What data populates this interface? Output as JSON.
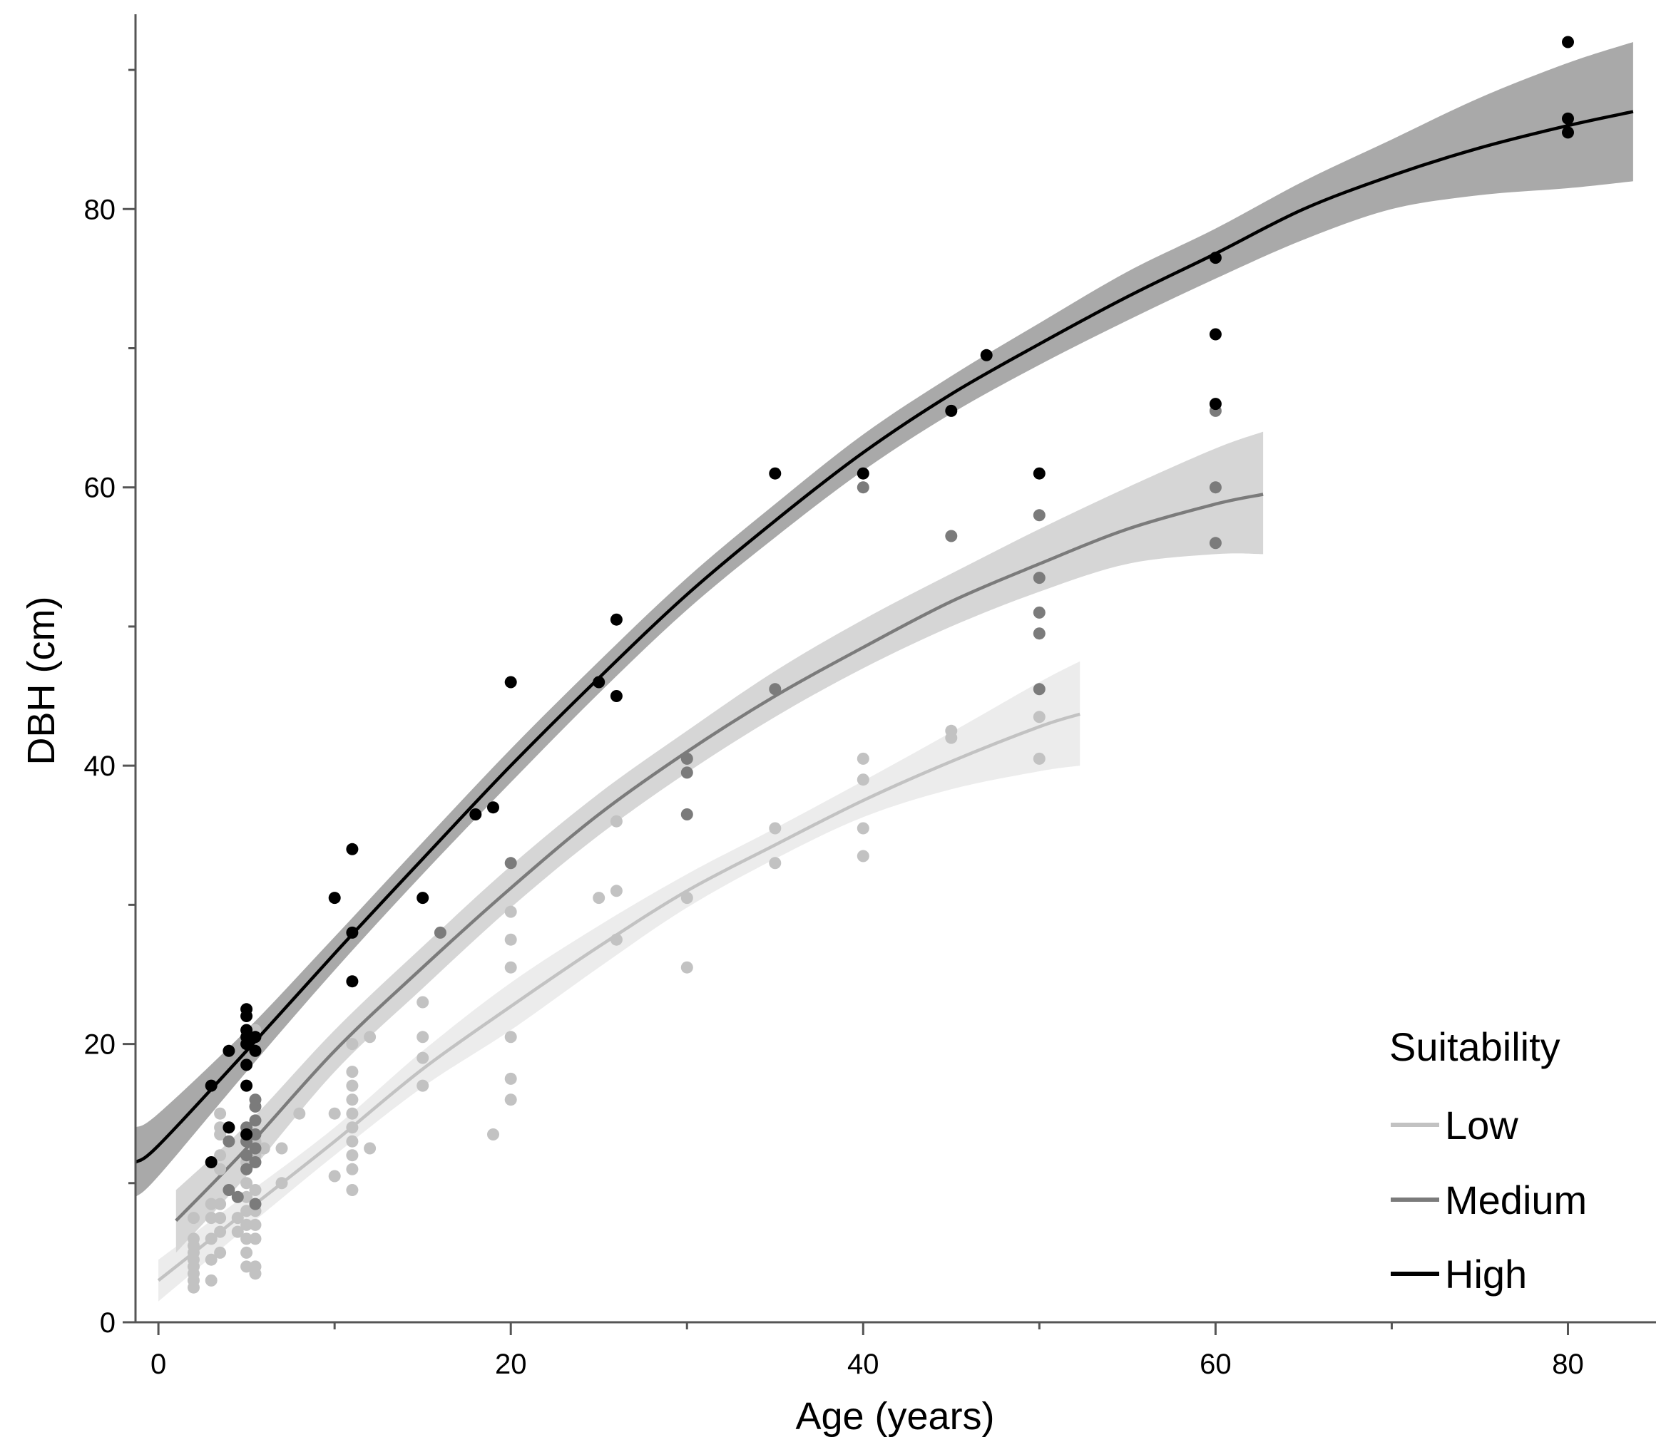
{
  "chart_data": {
    "type": "scatter",
    "title": "",
    "xlabel": "Age (years)",
    "ylabel": "DBH (cm)",
    "xlim": [
      -1.3,
      85
    ],
    "ylim": [
      0,
      94
    ],
    "xticks": [
      0,
      20,
      40,
      60,
      80
    ],
    "xticks_minor": [
      10,
      30,
      50,
      70
    ],
    "yticks": [
      0,
      20,
      40,
      60,
      80
    ],
    "yticks_minor": [
      10,
      30,
      50,
      70,
      90
    ],
    "grid": false,
    "legend": {
      "title": "Suitability",
      "position": "bottom-right"
    },
    "series": [
      {
        "name": "Low",
        "color": "#c2c2c2",
        "band_color": "#ececec",
        "fit": {
          "x": [
            0,
            5,
            10,
            15,
            20,
            25,
            30,
            35,
            40,
            45,
            50,
            52.3
          ],
          "y": [
            3.0,
            8.0,
            13.0,
            18.2,
            22.7,
            27.0,
            31.0,
            34.3,
            37.5,
            40.3,
            42.8,
            43.7
          ],
          "lower": [
            1.5,
            6.8,
            12.0,
            16.9,
            21.0,
            25.5,
            29.8,
            33.3,
            36.3,
            38.3,
            39.6,
            40.0
          ],
          "upper": [
            4.5,
            9.2,
            14.0,
            19.5,
            24.4,
            28.5,
            32.2,
            35.5,
            38.9,
            42.4,
            46.0,
            47.5
          ]
        },
        "points": [
          [
            2,
            2.5
          ],
          [
            2,
            3.0
          ],
          [
            2,
            3.5
          ],
          [
            2,
            4.0
          ],
          [
            2,
            4.5
          ],
          [
            2,
            5.0
          ],
          [
            2,
            5.5
          ],
          [
            2,
            6.0
          ],
          [
            2,
            7.5
          ],
          [
            3,
            3.0
          ],
          [
            3,
            4.5
          ],
          [
            3,
            6.0
          ],
          [
            3,
            7.5
          ],
          [
            3,
            8.5
          ],
          [
            3.5,
            5.0
          ],
          [
            3.5,
            6.5
          ],
          [
            3.5,
            7.5
          ],
          [
            3.5,
            8.5
          ],
          [
            3.5,
            11.0
          ],
          [
            3.5,
            12.0
          ],
          [
            3.5,
            13.5
          ],
          [
            3.5,
            14.0
          ],
          [
            3.5,
            15.0
          ],
          [
            4.5,
            6.5
          ],
          [
            4.5,
            7.5
          ],
          [
            5,
            4.0
          ],
          [
            5,
            5.0
          ],
          [
            5,
            6.0
          ],
          [
            5,
            7.0
          ],
          [
            5,
            8.0
          ],
          [
            5,
            9.0
          ],
          [
            5,
            10.0
          ],
          [
            5,
            11.5
          ],
          [
            5.5,
            3.5
          ],
          [
            5.5,
            4.0
          ],
          [
            5.5,
            6.0
          ],
          [
            5.5,
            7.0
          ],
          [
            5.5,
            8.0
          ],
          [
            5.5,
            9.5
          ],
          [
            5.5,
            12.0
          ],
          [
            5.5,
            13.0
          ],
          [
            5.5,
            21.0
          ],
          [
            6,
            12.5
          ],
          [
            7,
            10.0
          ],
          [
            7,
            12.5
          ],
          [
            8,
            15.0
          ],
          [
            10,
            10.5
          ],
          [
            10,
            15.0
          ],
          [
            11,
            9.5
          ],
          [
            11,
            11.0
          ],
          [
            11,
            12.0
          ],
          [
            11,
            13.0
          ],
          [
            11,
            14.0
          ],
          [
            11,
            15.0
          ],
          [
            11,
            16.0
          ],
          [
            11,
            17.0
          ],
          [
            11,
            18.0
          ],
          [
            11,
            20.0
          ],
          [
            12,
            12.5
          ],
          [
            12,
            20.5
          ],
          [
            15,
            17.0
          ],
          [
            15,
            19.0
          ],
          [
            15,
            20.5
          ],
          [
            15,
            23.0
          ],
          [
            19,
            13.5
          ],
          [
            20,
            16.0
          ],
          [
            20,
            17.5
          ],
          [
            20,
            20.5
          ],
          [
            20,
            25.5
          ],
          [
            20,
            27.5
          ],
          [
            20,
            29.5
          ],
          [
            25,
            30.5
          ],
          [
            26,
            27.5
          ],
          [
            26,
            31.0
          ],
          [
            26,
            36.0
          ],
          [
            30,
            25.5
          ],
          [
            30,
            30.5
          ],
          [
            35,
            33.0
          ],
          [
            35,
            35.5
          ],
          [
            40,
            33.5
          ],
          [
            40,
            35.5
          ],
          [
            40,
            39.0
          ],
          [
            40,
            40.5
          ],
          [
            45,
            42.0
          ],
          [
            45,
            42.5
          ],
          [
            50,
            40.5
          ],
          [
            50,
            43.5
          ]
        ]
      },
      {
        "name": "Medium",
        "color": "#7b7b7b",
        "band_color": "#d6d6d6",
        "fit": {
          "x": [
            1,
            5,
            10,
            15,
            20,
            25,
            30,
            35,
            40,
            45,
            50,
            55,
            60,
            62.7
          ],
          "y": [
            7.3,
            12.5,
            19.5,
            25.5,
            31.2,
            36.5,
            41.0,
            45.0,
            48.5,
            51.8,
            54.5,
            57.0,
            58.8,
            59.5
          ],
          "lower": [
            5.0,
            10.5,
            18.0,
            24.0,
            29.8,
            35.0,
            39.5,
            43.5,
            47.0,
            50.0,
            52.5,
            54.5,
            55.2,
            55.2
          ],
          "upper": [
            9.5,
            14.2,
            21.0,
            27.0,
            32.8,
            38.0,
            42.5,
            46.8,
            50.5,
            53.8,
            57.0,
            60.0,
            62.8,
            64.0
          ]
        },
        "points": [
          [
            4,
            9.5
          ],
          [
            4,
            13.0
          ],
          [
            4,
            14.0
          ],
          [
            4.5,
            9.0
          ],
          [
            5,
            11.0
          ],
          [
            5,
            12.0
          ],
          [
            5,
            13.0
          ],
          [
            5,
            14.0
          ],
          [
            5.5,
            8.5
          ],
          [
            5.5,
            11.5
          ],
          [
            5.5,
            12.5
          ],
          [
            5.5,
            13.5
          ],
          [
            5.5,
            14.5
          ],
          [
            5.5,
            15.5
          ],
          [
            5.5,
            16.0
          ],
          [
            16,
            28.0
          ],
          [
            20,
            33.0
          ],
          [
            30,
            36.5
          ],
          [
            30,
            39.5
          ],
          [
            30,
            40.5
          ],
          [
            35,
            45.5
          ],
          [
            40,
            60.0
          ],
          [
            45,
            56.5
          ],
          [
            50,
            45.5
          ],
          [
            50,
            49.5
          ],
          [
            50,
            51.0
          ],
          [
            50,
            53.5
          ],
          [
            50,
            58.0
          ],
          [
            60,
            56.0
          ],
          [
            60,
            60.0
          ],
          [
            60,
            65.5
          ]
        ]
      },
      {
        "name": "High",
        "color": "#000000",
        "band_color": "#a9a9a9",
        "fit": {
          "x": [
            -1.3,
            0,
            5,
            10,
            15,
            20,
            25,
            30,
            35,
            40,
            45,
            50,
            55,
            60,
            65,
            70,
            75,
            80,
            83.7
          ],
          "y": [
            11.5,
            12.7,
            19.5,
            26.5,
            33.3,
            40.0,
            46.3,
            52.3,
            57.6,
            62.5,
            66.7,
            70.3,
            73.7,
            76.8,
            80.0,
            82.4,
            84.4,
            86.0,
            87.0
          ],
          "lower": [
            9.0,
            10.5,
            18.0,
            25.3,
            32.2,
            38.8,
            45.2,
            51.2,
            56.4,
            61.2,
            65.3,
            68.8,
            72.0,
            75.0,
            77.8,
            80.0,
            81.0,
            81.5,
            82.0
          ],
          "upper": [
            14.0,
            15.0,
            21.0,
            27.7,
            34.5,
            41.2,
            47.5,
            53.5,
            58.8,
            63.8,
            68.0,
            71.8,
            75.5,
            78.6,
            82.0,
            85.0,
            88.0,
            90.5,
            92.0
          ]
        },
        "points": [
          [
            3,
            17.0
          ],
          [
            3,
            11.5
          ],
          [
            4,
            19.5
          ],
          [
            4,
            14.0
          ],
          [
            5,
            22.5
          ],
          [
            5,
            22.0
          ],
          [
            5,
            21.0
          ],
          [
            5,
            20.5
          ],
          [
            5,
            20.0
          ],
          [
            5,
            18.5
          ],
          [
            5,
            17.0
          ],
          [
            5,
            13.5
          ],
          [
            5.5,
            20.5
          ],
          [
            5.5,
            19.5
          ],
          [
            10,
            30.5
          ],
          [
            11,
            34.0
          ],
          [
            11,
            28.0
          ],
          [
            11,
            24.5
          ],
          [
            15,
            30.5
          ],
          [
            18,
            36.5
          ],
          [
            19,
            37.0
          ],
          [
            20,
            46.0
          ],
          [
            25,
            46.0
          ],
          [
            26,
            50.5
          ],
          [
            26,
            45.0
          ],
          [
            35,
            61.0
          ],
          [
            40,
            61.0
          ],
          [
            45,
            65.5
          ],
          [
            47,
            69.5
          ],
          [
            50,
            61.0
          ],
          [
            60,
            76.5
          ],
          [
            60,
            71.0
          ],
          [
            60,
            66.0
          ],
          [
            80,
            92.0
          ],
          [
            80,
            86.5
          ],
          [
            80,
            85.5
          ]
        ]
      }
    ]
  }
}
